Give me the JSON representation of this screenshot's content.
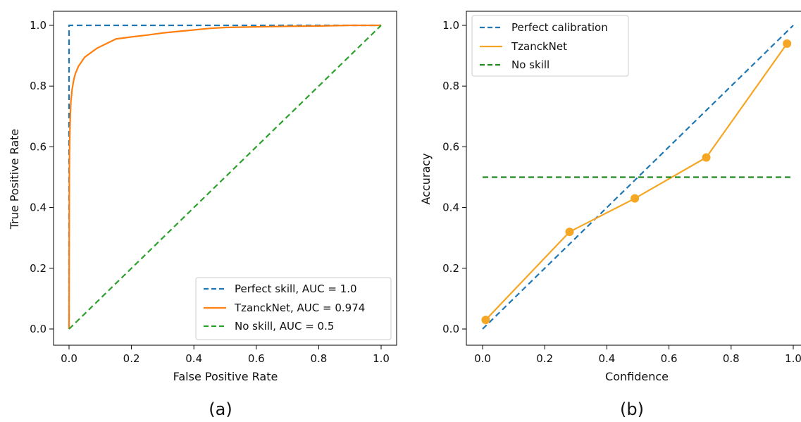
{
  "chart_data": [
    {
      "panel_label": "(a)",
      "type": "line",
      "xlabel": "False Positive Rate",
      "ylabel": "True Positive Rate",
      "xlim": [
        0,
        1
      ],
      "ylim": [
        0,
        1
      ],
      "xticks": [
        "0.0",
        "0.2",
        "0.4",
        "0.6",
        "0.8",
        "1.0"
      ],
      "yticks": [
        "0.0",
        "0.2",
        "0.4",
        "0.6",
        "0.8",
        "1.0"
      ],
      "grid": false,
      "legend_position": "bottom-right",
      "series": [
        {
          "name": "Perfect skill, AUC = 1.0",
          "color": "#1f77b4",
          "style": "dashed",
          "x": [
            0,
            0,
            1
          ],
          "y": [
            0,
            1,
            1
          ]
        },
        {
          "name": "TzanckNet, AUC = 0.974",
          "color": "#ff7f0e",
          "style": "solid",
          "x": [
            0,
            0.001,
            0.002,
            0.004,
            0.006,
            0.01,
            0.015,
            0.02,
            0.03,
            0.04,
            0.05,
            0.07,
            0.09,
            0.12,
            0.15,
            0.2,
            0.25,
            0.3,
            0.35,
            0.4,
            0.45,
            0.5,
            0.6,
            0.7,
            0.8,
            0.9,
            1.0
          ],
          "y": [
            0,
            0.52,
            0.62,
            0.7,
            0.75,
            0.79,
            0.82,
            0.84,
            0.865,
            0.88,
            0.895,
            0.91,
            0.925,
            0.94,
            0.955,
            0.962,
            0.968,
            0.975,
            0.98,
            0.985,
            0.99,
            0.993,
            0.995,
            0.997,
            0.998,
            1.0,
            1.0
          ]
        },
        {
          "name": "No skill, AUC = 0.5",
          "color": "#2ca02c",
          "style": "dashed",
          "x": [
            0,
            1
          ],
          "y": [
            0,
            1
          ]
        }
      ]
    },
    {
      "panel_label": "(b)",
      "type": "line",
      "xlabel": "Confidence",
      "ylabel": "Accuracy",
      "xlim": [
        0,
        1
      ],
      "ylim": [
        0,
        1
      ],
      "xticks": [
        "0.0",
        "0.2",
        "0.4",
        "0.6",
        "0.8",
        "1.0"
      ],
      "yticks": [
        "0.0",
        "0.2",
        "0.4",
        "0.6",
        "0.8",
        "1.0"
      ],
      "grid": false,
      "legend_position": "top-left",
      "series": [
        {
          "name": "Perfect calibration",
          "color": "#1f77b4",
          "style": "dashed",
          "x": [
            0,
            1
          ],
          "y": [
            0,
            1
          ]
        },
        {
          "name": "TzanckNet",
          "color": "#f5a623",
          "style": "solid",
          "markers": true,
          "x": [
            0.01,
            0.28,
            0.49,
            0.72,
            0.98
          ],
          "y": [
            0.03,
            0.32,
            0.43,
            0.565,
            0.94
          ]
        },
        {
          "name": "No skill",
          "color": "#1f8a1f",
          "style": "dashed",
          "x": [
            0,
            1
          ],
          "y": [
            0.5,
            0.5
          ]
        }
      ]
    }
  ]
}
